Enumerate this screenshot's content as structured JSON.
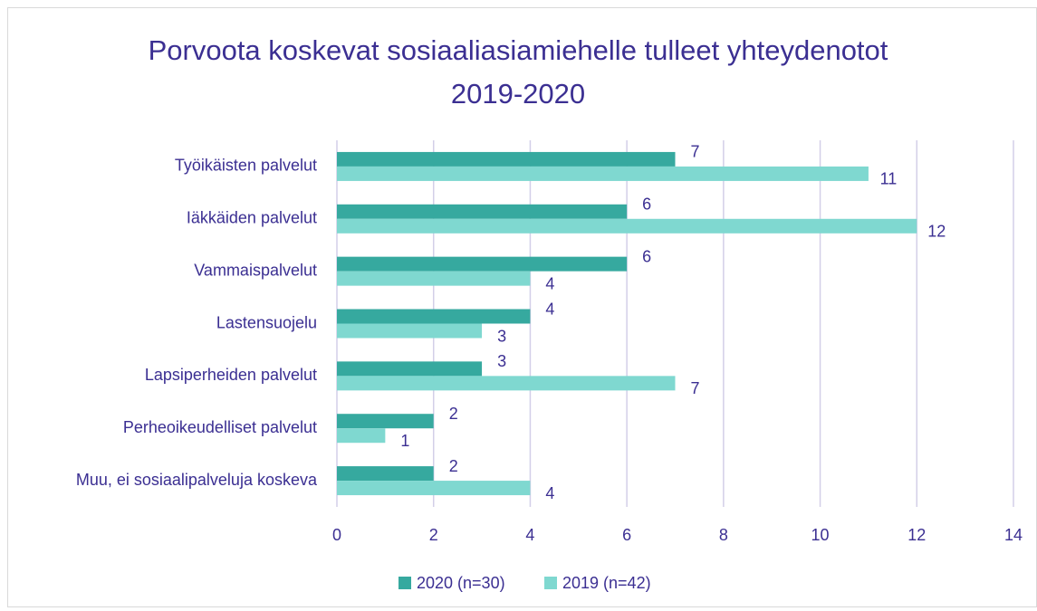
{
  "chart_data": {
    "type": "bar",
    "orientation": "horizontal",
    "title": "Porvoota koskevat sosiaaliasiamiehelle tulleet yhteydenotot 2019-2020",
    "categories": [
      "Työikäisten palvelut",
      "Iäkkäiden palvelut",
      "Vammaispalvelut",
      "Lastensuojelu",
      "Lapsiperheiden palvelut",
      "Perheoikeudelliset palvelut",
      "Muu, ei sosiaalipalveluja koskeva"
    ],
    "series": [
      {
        "name": "2020 (n=30)",
        "color": "#36a99f",
        "values": [
          7,
          6,
          6,
          4,
          3,
          2,
          2
        ]
      },
      {
        "name": "2019 (n=42)",
        "color": "#7fd8d0",
        "values": [
          11,
          12,
          4,
          3,
          7,
          1,
          4
        ]
      }
    ],
    "xlim": [
      0,
      14
    ],
    "xticks": [
      0,
      2,
      4,
      6,
      8,
      10,
      12,
      14
    ],
    "grid": true,
    "legend": "bottom"
  }
}
